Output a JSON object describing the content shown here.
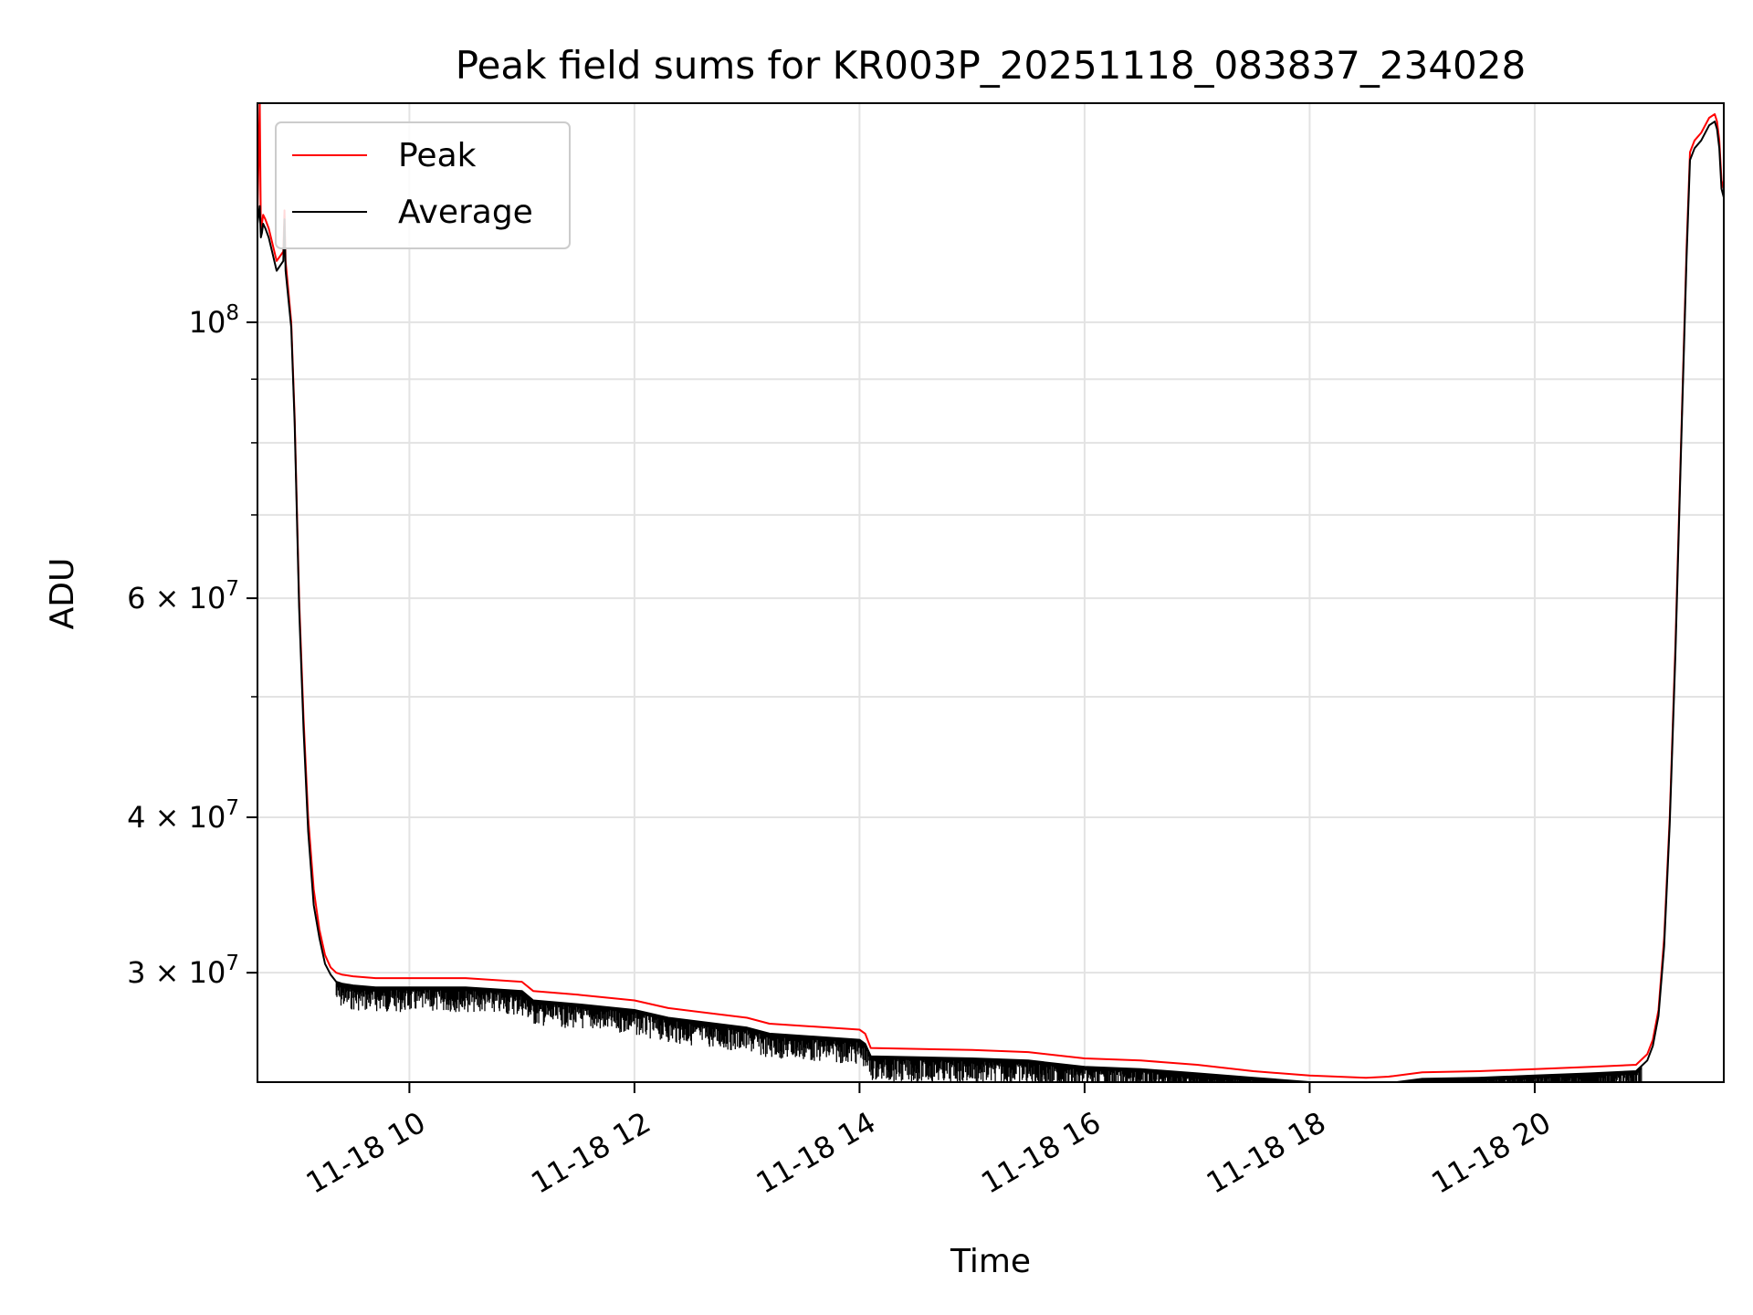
{
  "chart_data": {
    "type": "line",
    "title": "Peak field sums for KR003P_20251118_083837_234028",
    "xlabel": "Time",
    "ylabel": "ADU",
    "yscale": "log",
    "ylim": [
      24500000,
      150000000
    ],
    "xlim_hours": [
      8.65,
      21.68
    ],
    "grid": true,
    "legend_position": "upper-left",
    "x_ticks": [
      {
        "hour": 10,
        "label": "11-18 10"
      },
      {
        "hour": 12,
        "label": "11-18 12"
      },
      {
        "hour": 14,
        "label": "11-18 14"
      },
      {
        "hour": 16,
        "label": "11-18 16"
      },
      {
        "hour": 18,
        "label": "11-18 18"
      },
      {
        "hour": 20,
        "label": "11-18 20"
      }
    ],
    "y_ticks": [
      {
        "value": 100000000,
        "base": "10",
        "exp": "8",
        "mult": ""
      },
      {
        "value": 60000000,
        "base": "10",
        "exp": "7",
        "mult": "6 × "
      },
      {
        "value": 40000000,
        "base": "10",
        "exp": "7",
        "mult": "4 × "
      },
      {
        "value": 30000000,
        "base": "10",
        "exp": "7",
        "mult": "3 × "
      }
    ],
    "y_minor_ticks": [
      90000000,
      80000000,
      70000000,
      50000000
    ],
    "series": [
      {
        "name": "Peak",
        "color": "#ff0000",
        "x_hours": [
          8.65,
          8.67,
          8.68,
          8.69,
          8.7,
          8.72,
          8.75,
          8.78,
          8.82,
          8.85,
          8.88,
          8.89,
          8.9,
          8.95,
          8.98,
          9.02,
          9.06,
          9.1,
          9.15,
          9.2,
          9.25,
          9.3,
          9.35,
          9.4,
          9.5,
          9.7,
          10.0,
          10.5,
          11.0,
          11.1,
          11.5,
          12.0,
          12.3,
          13.0,
          13.2,
          14.0,
          14.05,
          14.1,
          15.0,
          15.5,
          16.0,
          16.5,
          17.0,
          17.5,
          18.0,
          18.5,
          18.7,
          19.0,
          19.5,
          20.0,
          20.5,
          20.9,
          21.0,
          21.05,
          21.1,
          21.15,
          21.2,
          21.25,
          21.3,
          21.35,
          21.38,
          21.42,
          21.48,
          21.55,
          21.6,
          21.62,
          21.64,
          21.66,
          21.68
        ],
        "y": [
          122000000,
          150000000,
          119000000,
          120000000,
          122000000,
          121000000,
          119000000,
          116000000,
          112000000,
          113000000,
          114000000,
          123000000,
          112000000,
          100000000,
          84000000,
          60000000,
          48000000,
          40000000,
          35000000,
          32500000,
          31000000,
          30300000,
          30000000,
          29900000,
          29800000,
          29700000,
          29700000,
          29700000,
          29500000,
          29000000,
          28800000,
          28500000,
          28100000,
          27600000,
          27300000,
          27000000,
          26800000,
          26100000,
          26000000,
          25900000,
          25600000,
          25500000,
          25300000,
          25000000,
          24800000,
          24700000,
          24750000,
          24950000,
          25000000,
          25100000,
          25200000,
          25300000,
          25800000,
          26500000,
          28000000,
          32000000,
          40000000,
          55000000,
          80000000,
          115000000,
          137000000,
          140000000,
          142000000,
          146000000,
          147000000,
          145000000,
          140000000,
          130000000,
          128000000
        ]
      },
      {
        "name": "Average",
        "color": "#000000",
        "x_hours": [
          8.65,
          8.67,
          8.68,
          8.69,
          8.7,
          8.72,
          8.75,
          8.78,
          8.82,
          8.85,
          8.88,
          8.89,
          8.9,
          8.95,
          8.98,
          9.02,
          9.06,
          9.1,
          9.15,
          9.2,
          9.25,
          9.3,
          9.35,
          9.4,
          9.5,
          9.7,
          10.0,
          10.5,
          11.0,
          11.1,
          11.5,
          12.0,
          12.3,
          13.0,
          13.2,
          14.0,
          14.05,
          14.1,
          15.0,
          15.5,
          16.0,
          16.5,
          17.0,
          17.5,
          18.0,
          18.5,
          18.7,
          19.0,
          19.5,
          20.0,
          20.5,
          20.9,
          21.0,
          21.05,
          21.1,
          21.15,
          21.2,
          21.25,
          21.3,
          21.35,
          21.38,
          21.42,
          21.48,
          21.55,
          21.6,
          21.62,
          21.64,
          21.66,
          21.68
        ],
        "y": [
          120000000,
          124000000,
          117000000,
          118000000,
          120000000,
          119000000,
          117000000,
          114000000,
          110000000,
          111000000,
          112000000,
          121000000,
          110000000,
          99000000,
          83000000,
          59000000,
          47000000,
          39000000,
          34000000,
          32000000,
          30500000,
          29900000,
          29500000,
          29400000,
          29300000,
          29200000,
          29200000,
          29200000,
          29000000,
          28500000,
          28300000,
          28000000,
          27600000,
          27100000,
          26800000,
          26500000,
          26300000,
          25700000,
          25600000,
          25500000,
          25200000,
          25100000,
          24900000,
          24700000,
          24500000,
          24400000,
          24450000,
          24650000,
          24700000,
          24800000,
          24900000,
          25000000,
          25500000,
          26200000,
          27700000,
          31500000,
          39500000,
          54000000,
          79000000,
          113000000,
          135000000,
          138000000,
          140000000,
          144000000,
          145000000,
          143000000,
          138000000,
          128000000,
          126000000
        ]
      }
    ]
  }
}
